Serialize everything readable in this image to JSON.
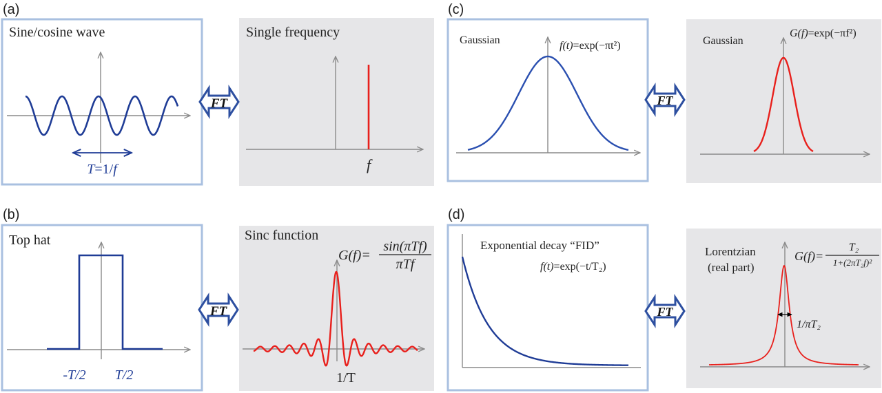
{
  "panels": {
    "a": {
      "label": "(a)",
      "left_title": "Sine/cosine wave",
      "period_T": "T",
      "period_eq": "=1/",
      "period_f": "f",
      "right_title": "Single frequency",
      "freq_label": "f"
    },
    "b": {
      "label": "(b)",
      "left_title": "Top hat",
      "neg_half": "-T/2",
      "pos_half": "T/2",
      "right_title": "Sinc function",
      "lhs": "G(f)=",
      "numerator": "sin(πTf)",
      "denominator": "πTf",
      "zero_label": "1/T"
    },
    "c": {
      "label": "(c)",
      "left_title": "Gaussian",
      "left_eq_fn": "f(t)",
      "left_eq_body": "=exp(−πt²)",
      "right_title": "Gaussian",
      "right_eq_fn": "G(f)",
      "right_eq_body": "=exp(−πf²)"
    },
    "d": {
      "label": "(d)",
      "left_title": "Exponential decay “FID”",
      "left_eq_fn": "f(t)",
      "left_eq_body": "=exp(−t/T₂)",
      "right_title_1": "Lorentzian",
      "right_title_2": "(real part)",
      "lhs": "G(f)=",
      "numerator": "T₂",
      "denominator": "1+(2πT₂f)²",
      "width_label": "1/πT₂"
    }
  },
  "ft_label": "FT",
  "colors": {
    "time_curve": "#1f3c96",
    "freq_curve": "#e8201c",
    "box_border": "#a9c0e0",
    "freq_bg": "#e6e6e8",
    "axis": "#8a8a8a",
    "arrow_fill": "#ffffff",
    "arrow_stroke": "#2d4fa0"
  },
  "icons": {
    "ft_arrow": "double-headed-arrow-icon"
  }
}
